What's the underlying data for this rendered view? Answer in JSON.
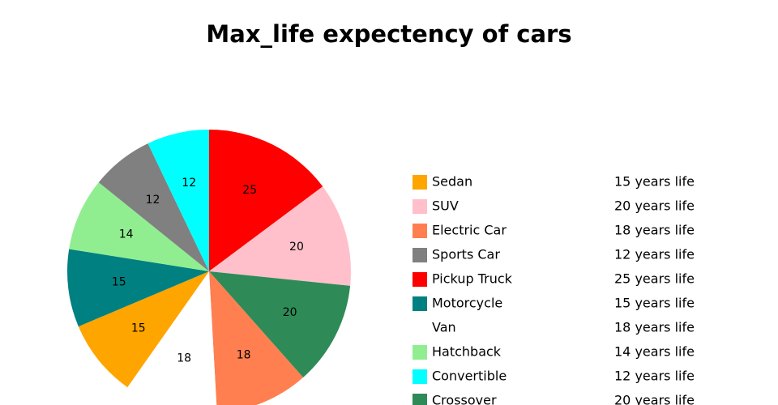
{
  "chart_data": {
    "type": "pie",
    "title": "Max_life expectency of cars",
    "categories": [
      "Sedan",
      "SUV",
      "Electric Car",
      "Sports Car",
      "Pickup Truck",
      "Motorcycle",
      "Van",
      "Hatchback",
      "Convertible",
      "Crossover"
    ],
    "values": [
      15,
      20,
      18,
      12,
      25,
      15,
      18,
      14,
      12,
      20
    ],
    "colors": [
      "#ffa500",
      "#ffc0cb",
      "#ff7f50",
      "#808080",
      "#ff0000",
      "#008080",
      "#ffffff",
      "#90ee90",
      "#00ffff",
      "#2e8b57"
    ],
    "legend_labels": [
      "15 years life",
      "20 years life",
      "18 years life",
      "12 years life",
      "25 years life",
      "15 years life",
      "18 years life",
      "14 years life",
      "12 years life",
      "20 years life"
    ],
    "sort": true,
    "direction": "clockwise",
    "legend": "right"
  }
}
